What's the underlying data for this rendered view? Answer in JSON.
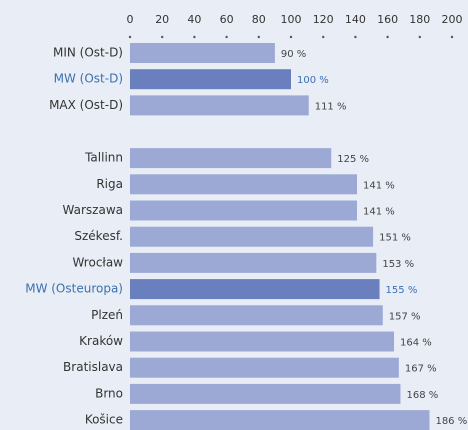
{
  "chart_data": {
    "type": "bar",
    "categories": [
      "MIN (Ost-D)",
      "MW (Ost-D)",
      "MAX (Ost-D)",
      "Tallinn",
      "Riga",
      "Warszawa",
      "Székesf.",
      "Wrocław",
      "MW (Osteuropa)",
      "Plzeń",
      "Kraków",
      "Bratislava",
      "Brno",
      "Košice"
    ],
    "values": [
      90,
      100,
      111,
      125,
      141,
      141,
      151,
      153,
      155,
      157,
      164,
      167,
      168,
      186
    ],
    "value_labels": [
      "90 %",
      "100 %",
      "111 %",
      "125 %",
      "141 %",
      "141 %",
      "151 %",
      "153 %",
      "155 %",
      "157 %",
      "164 %",
      "167 %",
      "168 %",
      "186 %"
    ],
    "colors": [
      "#9ca9d5",
      "#6a80be",
      "#9ca9d5",
      "#9ca9d5",
      "#9ca9d5",
      "#9ca9d5",
      "#9ca9d5",
      "#9ca9d5",
      "#6a80be",
      "#9ca9d5",
      "#9ca9d5",
      "#9ca9d5",
      "#9ca9d5",
      "#9ca9d5"
    ],
    "label_colors": [
      "#333333",
      "#3a70b2",
      "#333333",
      "#333333",
      "#333333",
      "#333333",
      "#333333",
      "#333333",
      "#3a70b2",
      "#333333",
      "#333333",
      "#333333",
      "#333333",
      "#333333"
    ],
    "value_label_colors": [
      "#444444",
      "#3a70b2",
      "#444444",
      "#444444",
      "#444444",
      "#444444",
      "#444444",
      "#444444",
      "#3a70b2",
      "#444444",
      "#444444",
      "#444444",
      "#444444",
      "#444444"
    ],
    "xlim": [
      0,
      200
    ],
    "xticks": [
      0,
      20,
      40,
      60,
      80,
      100,
      120,
      140,
      160,
      180,
      200
    ]
  }
}
